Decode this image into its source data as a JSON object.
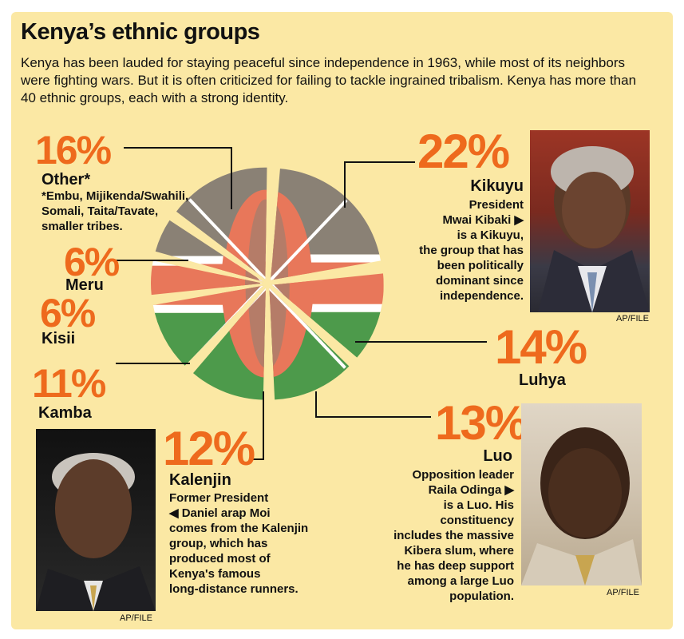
{
  "title": "Kenya’s ethnic groups",
  "intro": "Kenya has been lauded for staying peaceful since independence in 1963, while most of its neighbors were fighting wars. But it is often criticized for failing to tackle ingrained tribalism. Kenya has more than 40 ethnic groups, each with a strong identity.",
  "colors": {
    "background": "#fbe8a4",
    "accent": "#ee6a1d",
    "flag_black": "#8a8175",
    "flag_red": "#e8775a",
    "flag_green": "#4d9a4b",
    "flag_white": "#ffffff"
  },
  "chart_data": {
    "type": "pie",
    "title": "Kenya’s ethnic groups",
    "slices": [
      {
        "name": "Kikuyu",
        "value": 22,
        "label": "22%"
      },
      {
        "name": "Luhya",
        "value": 14,
        "label": "14%"
      },
      {
        "name": "Luo",
        "value": 13,
        "label": "13%"
      },
      {
        "name": "Kalenjin",
        "value": 12,
        "label": "12%"
      },
      {
        "name": "Kamba",
        "value": 11,
        "label": "11%"
      },
      {
        "name": "Kisii",
        "value": 6,
        "label": "6%"
      },
      {
        "name": "Meru",
        "value": 6,
        "label": "6%"
      },
      {
        "name": "Other*",
        "value": 16,
        "label": "16%"
      }
    ]
  },
  "annotations": {
    "other_note": [
      "*Embu, Mijikenda/Swahili,",
      "Somali, Taita/Tavate,",
      "smaller tribes."
    ],
    "kikuyu_title": "President",
    "kikuyu_name": "Mwai Kibaki ▶",
    "kikuyu_desc": [
      "is a Kikuyu,",
      "the group that has",
      "been politically",
      "dominant since",
      "independence."
    ],
    "luo_title": "Opposition leader",
    "luo_name": "Raila Odinga ▶",
    "luo_desc": [
      "is a Luo. His",
      "constituency",
      "includes the massive",
      "Kibera slum, where",
      "he has deep support",
      "among a large Luo",
      "population."
    ],
    "kalenjin_title": "Former President",
    "kalenjin_name": "◀ Daniel arap Moi",
    "kalenjin_desc": [
      "comes from the Kalenjin",
      "group, which has",
      "produced most of",
      "Kenya's famous",
      "long-distance runners."
    ]
  },
  "photos": {
    "kibaki_credit": "AP/FILE",
    "odinga_credit": "AP/FILE",
    "moi_credit": "AP/FILE"
  }
}
